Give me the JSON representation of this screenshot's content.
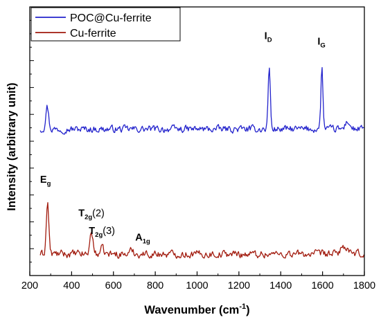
{
  "chart_data": {
    "type": "line",
    "title": "",
    "xlabel_main": "Wavenumber (cm",
    "xlabel_sup": "-1",
    "xlabel_end": ")",
    "ylabel": "Intensity (arbitrary unit)",
    "xlim": [
      200,
      1800
    ],
    "ylim": [
      0,
      1
    ],
    "y_ticks_labeled": false,
    "x_ticks": [
      "200",
      "400",
      "600",
      "800",
      "1000",
      "1200",
      "1400",
      "1600",
      "1800"
    ],
    "legend_position": "top-left",
    "series": [
      {
        "name": "POC@Cu-ferrite",
        "color": "#2222cc",
        "baseline": 0.545,
        "noise": 0.011,
        "peaks": [
          {
            "x": 283,
            "h": 0.085,
            "w": 7
          },
          {
            "x": 1345,
            "h": 0.235,
            "w": 5
          },
          {
            "x": 1597,
            "h": 0.225,
            "w": 5
          },
          {
            "x": 1720,
            "h": 0.03,
            "w": 10
          }
        ]
      },
      {
        "name": "Cu-ferrite",
        "color": "#a11a0d",
        "baseline": 0.08,
        "noise": 0.012,
        "peaks": [
          {
            "x": 285,
            "h": 0.19,
            "w": 6
          },
          {
            "x": 495,
            "h": 0.085,
            "w": 7
          },
          {
            "x": 545,
            "h": 0.02,
            "w": 8
          },
          {
            "x": 690,
            "h": 0.015,
            "w": 8
          },
          {
            "x": 1700,
            "h": 0.03,
            "w": 14
          }
        ]
      }
    ],
    "annotations": [
      {
        "main": "I",
        "sub": "D",
        "x": 1340,
        "y": 0.88
      },
      {
        "main": "I",
        "sub": "G",
        "x": 1595,
        "y": 0.86
      },
      {
        "main": "E",
        "sub": "g",
        "x": 275,
        "y": 0.345
      },
      {
        "main": "T",
        "sub": "2g",
        "after": "(2)",
        "x": 495,
        "y": 0.22
      },
      {
        "main": "T",
        "sub": "2g",
        "after": "(3)",
        "x": 545,
        "y": 0.155
      },
      {
        "main": "A",
        "sub": "1g",
        "x": 740,
        "y": 0.13
      }
    ]
  }
}
